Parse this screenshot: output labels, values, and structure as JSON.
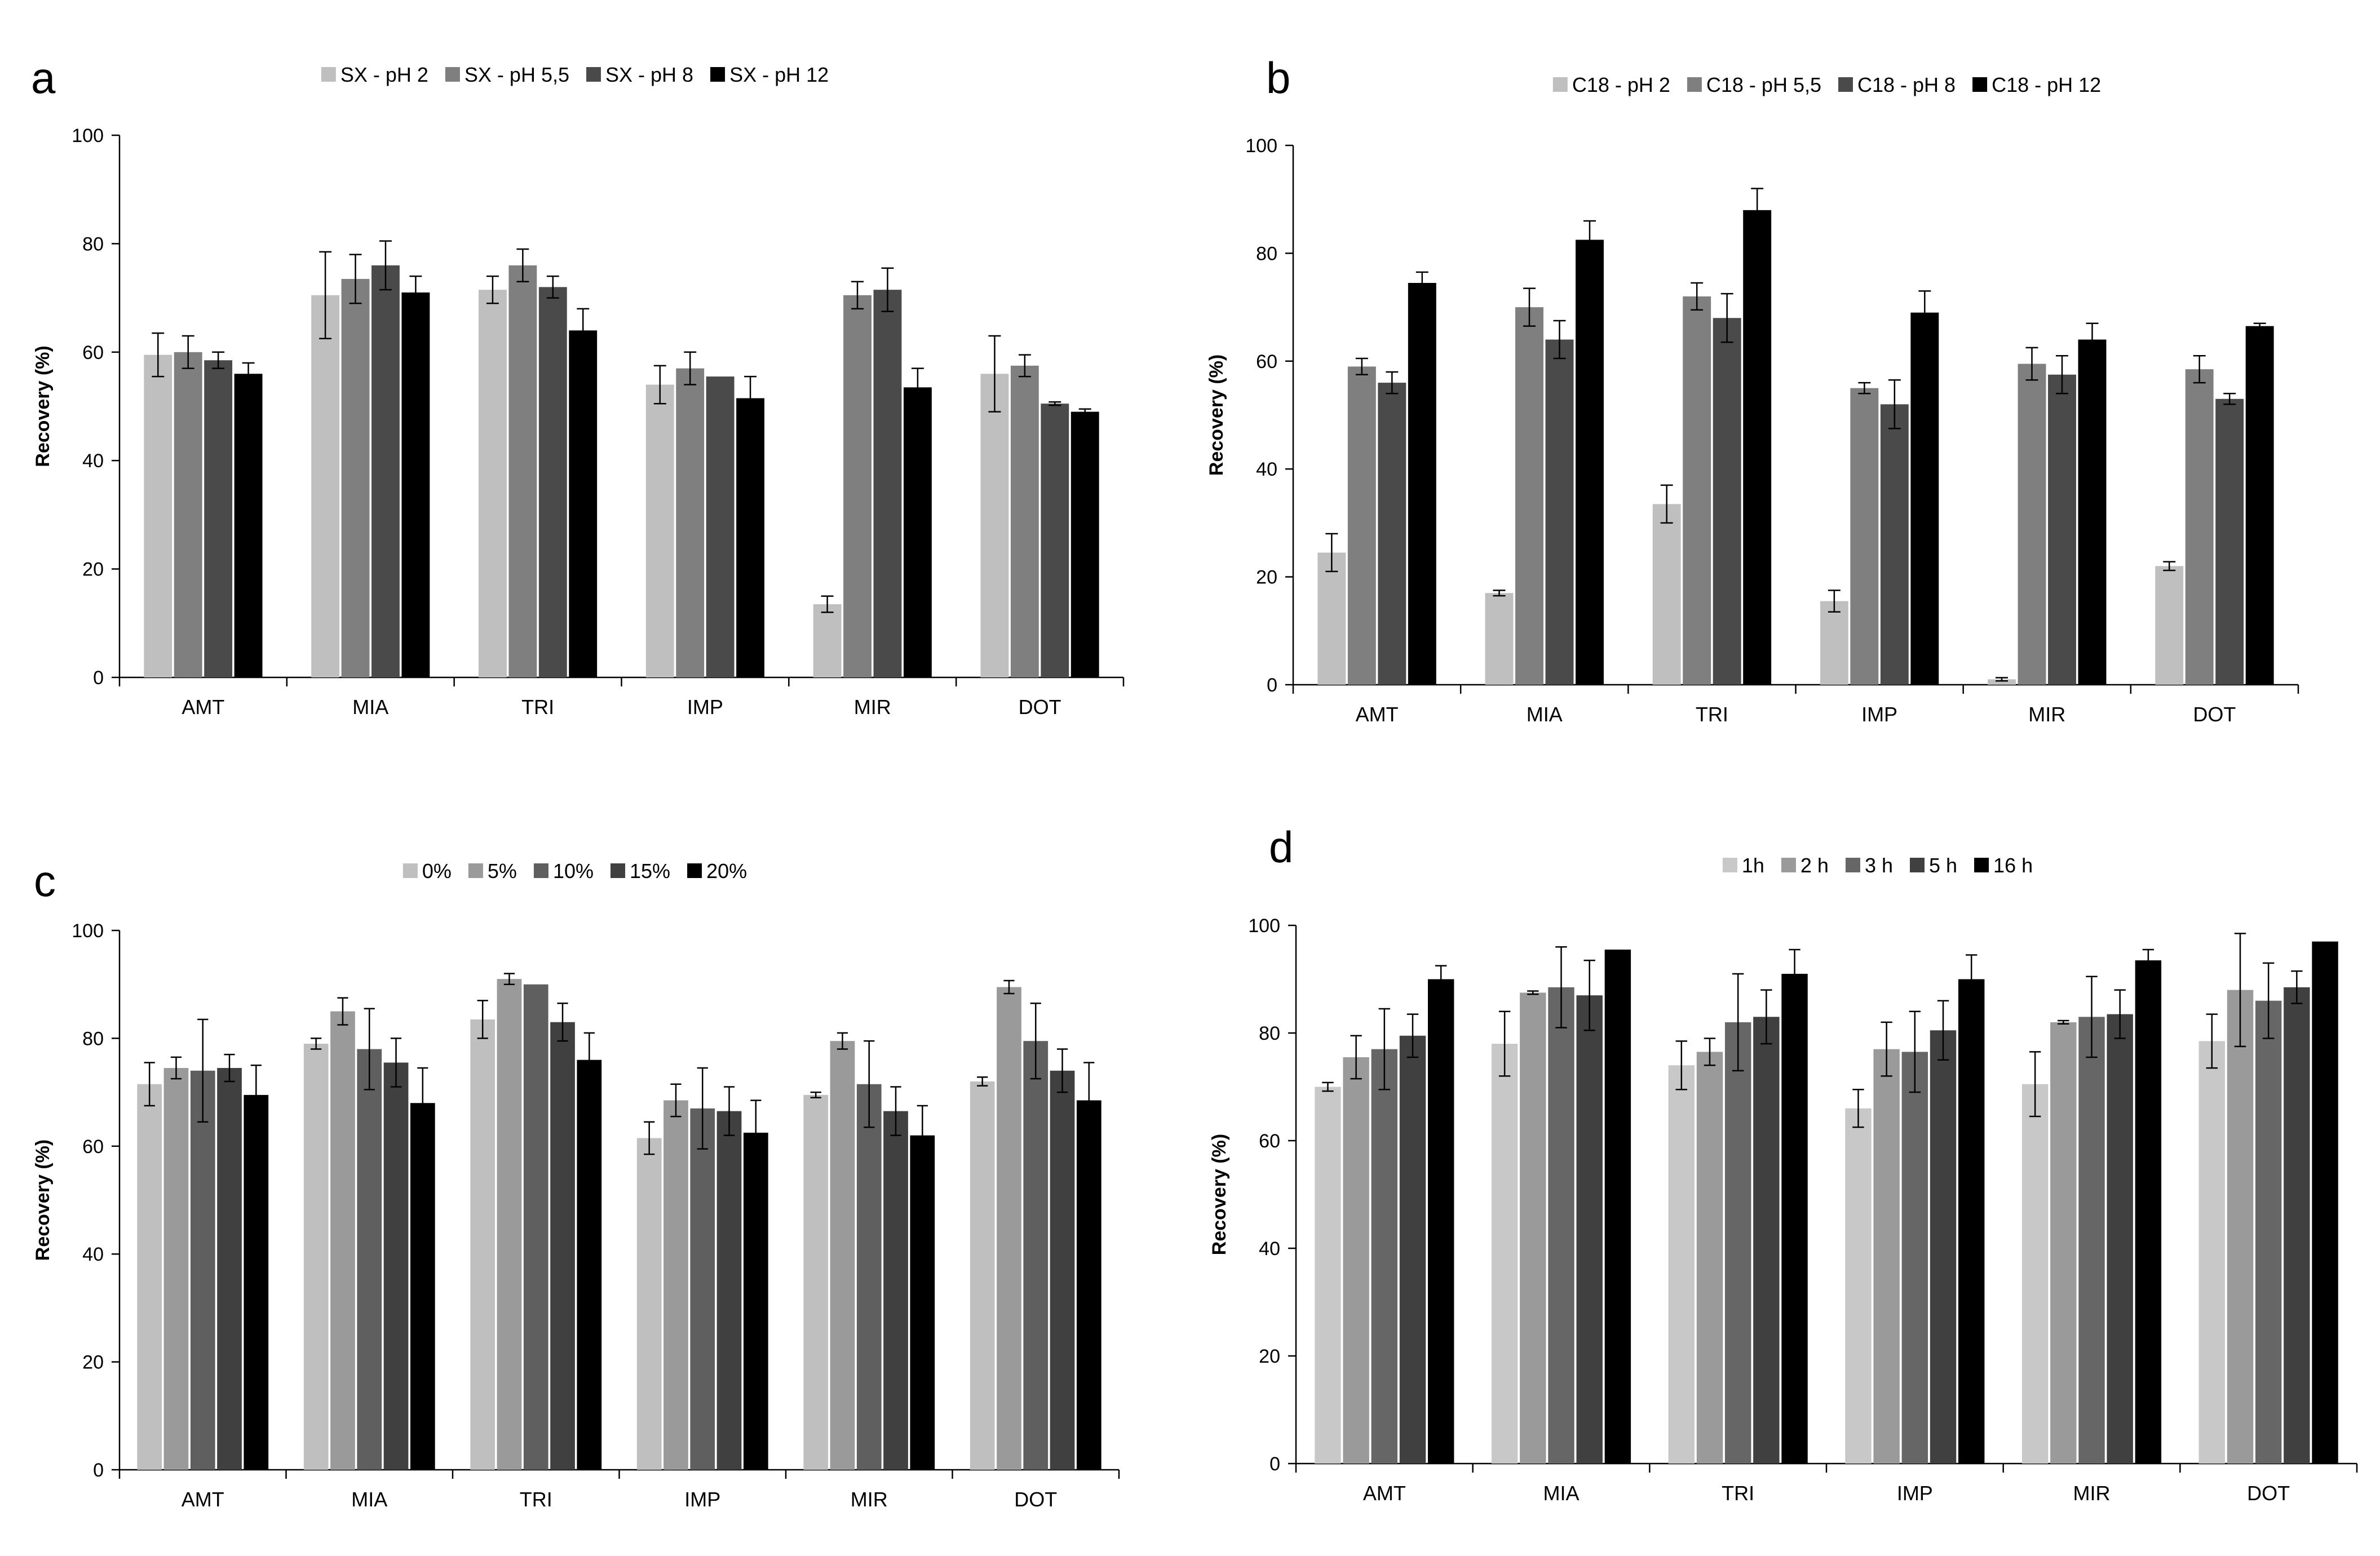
{
  "chart_data": [
    {
      "type": "bar",
      "panel_label": "a",
      "title": "",
      "xlabel": "",
      "ylabel": "Recovery (%)",
      "ylim": [
        0,
        100
      ],
      "yticks": [
        "0",
        "20",
        "40",
        "60",
        "80",
        "100"
      ],
      "grid": false,
      "legend_position": "top-center",
      "categories": [
        "AMT",
        "MIA",
        "TRI",
        "IMP",
        "MIR",
        "DOT"
      ],
      "series": [
        {
          "name": "SX - pH 2",
          "color": "#bfbfbf",
          "values": [
            59.5,
            70.5,
            71.5,
            54,
            13.5,
            56
          ],
          "errors": [
            4,
            8,
            2.5,
            3.5,
            1.5,
            7
          ]
        },
        {
          "name": "SX - pH 5,5",
          "color": "#7f7f7f",
          "values": [
            60,
            73.5,
            76,
            57,
            70.5,
            57.5
          ],
          "errors": [
            3,
            4.5,
            3,
            3,
            2.5,
            2
          ]
        },
        {
          "name": "SX - pH 8",
          "color": "#4a4a4a",
          "values": [
            58.5,
            76,
            72,
            55.5,
            71.5,
            50.5
          ],
          "errors": [
            1.5,
            4.5,
            2,
            0,
            4,
            0.3
          ]
        },
        {
          "name": "SX -  pH 12",
          "color": "#000000",
          "values": [
            56,
            71,
            64,
            51.5,
            53.5,
            49
          ],
          "errors": [
            2,
            3,
            4,
            4,
            3.5,
            0.5
          ]
        }
      ]
    },
    {
      "type": "bar",
      "panel_label": "b",
      "title": "",
      "xlabel": "",
      "ylabel": "Recovery (%)",
      "ylim": [
        0,
        100
      ],
      "yticks": [
        "0",
        "20",
        "40",
        "60",
        "80",
        "100"
      ],
      "grid": false,
      "legend_position": "top-center",
      "categories": [
        "AMT",
        "MIA",
        "TRI",
        "IMP",
        "MIR",
        "DOT"
      ],
      "series": [
        {
          "name": "C18 - pH 2",
          "color": "#bfbfbf",
          "values": [
            24.5,
            17,
            33.5,
            15.5,
            1,
            22
          ],
          "errors": [
            3.5,
            0.5,
            3.5,
            2,
            0.3,
            0.8
          ]
        },
        {
          "name": "C18 - pH 5,5",
          "color": "#7f7f7f",
          "values": [
            59,
            70,
            72,
            55,
            59.5,
            58.5
          ],
          "errors": [
            1.5,
            3.5,
            2.5,
            1,
            3,
            2.5
          ]
        },
        {
          "name": "C18 - pH 8",
          "color": "#4a4a4a",
          "values": [
            56,
            64,
            68,
            52,
            57.5,
            53
          ],
          "errors": [
            2,
            3.5,
            4.5,
            4.5,
            3.5,
            1
          ]
        },
        {
          "name": "C18 - pH 12",
          "color": "#000000",
          "values": [
            74.5,
            82.5,
            88,
            69,
            64,
            66.5
          ],
          "errors": [
            2,
            3.5,
            4,
            4,
            3,
            0.5
          ]
        }
      ]
    },
    {
      "type": "bar",
      "panel_label": "c",
      "title": "",
      "xlabel": "",
      "ylabel": "Recovery (%)",
      "ylim": [
        0,
        100
      ],
      "yticks": [
        "0",
        "20",
        "40",
        "60",
        "80",
        "100"
      ],
      "grid": false,
      "legend_position": "top-center",
      "categories": [
        "AMT",
        "MIA",
        "TRI",
        "IMP",
        "MIR",
        "DOT"
      ],
      "series": [
        {
          "name": "0%",
          "color": "#bfbfbf",
          "values": [
            71.5,
            79,
            83.5,
            61.5,
            69.5,
            72
          ],
          "errors": [
            4,
            1,
            3.5,
            3,
            0.5,
            0.8
          ]
        },
        {
          "name": "5%",
          "color": "#9a9a9a",
          "values": [
            74.5,
            85,
            91,
            68.5,
            79.5,
            89.5
          ],
          "errors": [
            2,
            2.5,
            1,
            3,
            1.5,
            1.2
          ]
        },
        {
          "name": "10%",
          "color": "#5f5f5f",
          "values": [
            74,
            78,
            90,
            67,
            71.5,
            79.5
          ],
          "errors": [
            9.5,
            7.5,
            0,
            7.5,
            8,
            7
          ]
        },
        {
          "name": "15%",
          "color": "#404040",
          "values": [
            74.5,
            75.5,
            83,
            66.5,
            66.5,
            74
          ],
          "errors": [
            2.5,
            4.5,
            3.5,
            4.5,
            4.5,
            4
          ]
        },
        {
          "name": "20%",
          "color": "#000000",
          "values": [
            69.5,
            68,
            76,
            62.5,
            62,
            68.5
          ],
          "errors": [
            5.5,
            6.5,
            5,
            6,
            5.5,
            7
          ]
        }
      ]
    },
    {
      "type": "bar",
      "panel_label": "d",
      "title": "",
      "xlabel": "",
      "ylabel": "Recovery  (%)",
      "ylim": [
        0,
        100
      ],
      "yticks": [
        "0",
        "20",
        "40",
        "60",
        "80",
        "100"
      ],
      "grid": false,
      "legend_position": "top-center",
      "categories": [
        "AMT",
        "MIA",
        "TRI",
        "IMP",
        "MIR",
        "DOT"
      ],
      "series": [
        {
          "name": "1h",
          "color": "#c8c8c8",
          "values": [
            70,
            78,
            74,
            66,
            70.5,
            78.5
          ],
          "errors": [
            0.8,
            6,
            4.5,
            3.5,
            6,
            5
          ]
        },
        {
          "name": "2 h",
          "color": "#9a9a9a",
          "values": [
            75.5,
            87.5,
            76.5,
            77,
            82,
            88
          ],
          "errors": [
            4,
            0.3,
            2.5,
            5,
            0.3,
            10.5
          ]
        },
        {
          "name": "3 h",
          "color": "#666666",
          "values": [
            77,
            88.5,
            82,
            76.5,
            83,
            86
          ],
          "errors": [
            7.5,
            7.5,
            9,
            7.5,
            7.5,
            7
          ]
        },
        {
          "name": "5 h",
          "color": "#404040",
          "values": [
            79.5,
            87,
            83,
            80.5,
            83.5,
            88.5
          ],
          "errors": [
            4,
            6.5,
            5,
            5.5,
            4.5,
            3
          ]
        },
        {
          "name": "16 h",
          "color": "#000000",
          "values": [
            90,
            95.5,
            91,
            90,
            93.5,
            97
          ],
          "errors": [
            2.5,
            0,
            4.5,
            4.5,
            2,
            0
          ]
        }
      ]
    }
  ]
}
